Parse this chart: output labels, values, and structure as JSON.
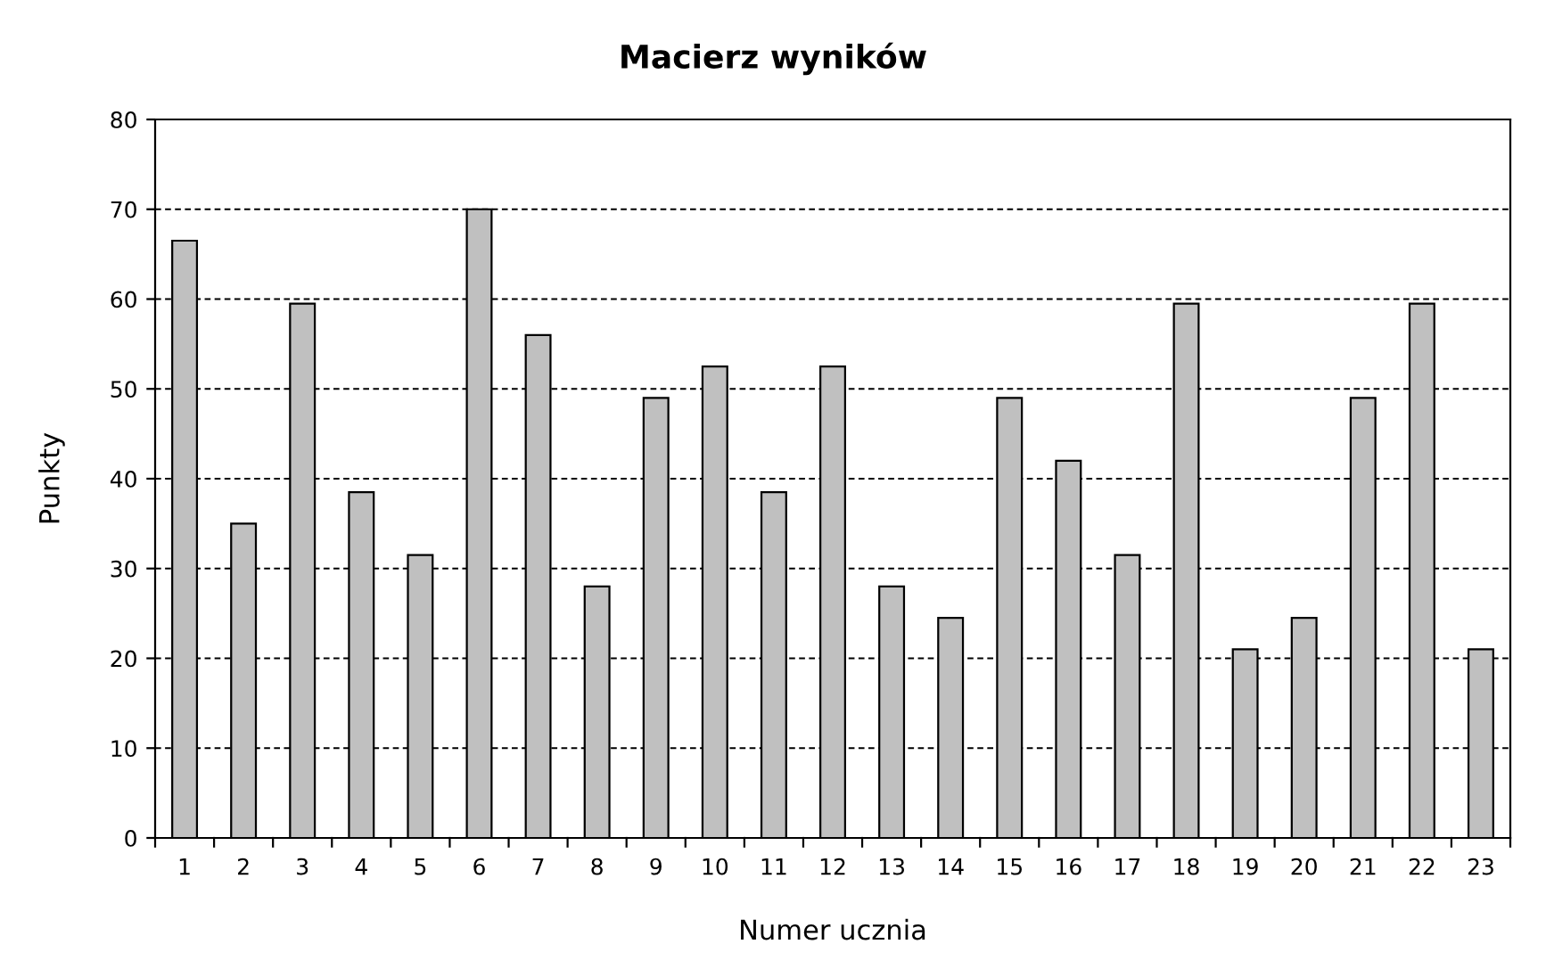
{
  "chart_data": {
    "type": "bar",
    "title": "Macierz wyników",
    "xlabel": "Numer ucznia",
    "ylabel": "Punkty",
    "categories": [
      "1",
      "2",
      "3",
      "4",
      "5",
      "6",
      "7",
      "8",
      "9",
      "10",
      "11",
      "12",
      "13",
      "14",
      "15",
      "16",
      "17",
      "18",
      "19",
      "20",
      "21",
      "22",
      "23"
    ],
    "values": [
      66.5,
      35,
      59.5,
      38.5,
      31.5,
      70,
      56,
      28,
      49,
      52.5,
      38.5,
      52.5,
      28,
      24.5,
      49,
      42,
      31.5,
      59.5,
      21,
      24.5,
      49,
      59.5,
      21
    ],
    "color": "#c0c0c0",
    "ylim": [
      0,
      80
    ],
    "yticks": [
      0,
      10,
      20,
      30,
      40,
      50,
      60,
      70,
      80
    ],
    "grid": "y",
    "legend": false
  }
}
